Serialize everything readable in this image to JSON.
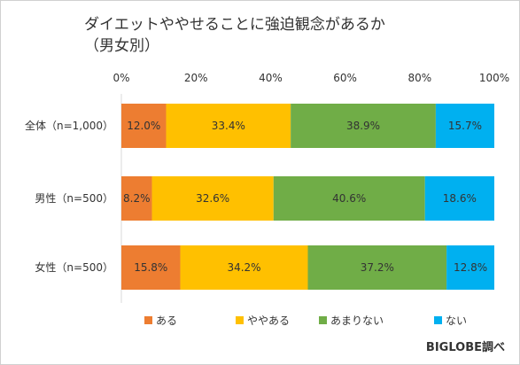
{
  "chart_data": {
    "type": "bar",
    "orientation": "horizontal",
    "stacked": "percent",
    "title_lines": [
      "ダイエットややせることに強迫観念があるか",
      "（男女別）"
    ],
    "categories": [
      "全体（n=1,000）",
      "男性（n=500）",
      "女性（n=500）"
    ],
    "series": [
      {
        "name": "ある",
        "values": [
          12.0,
          8.2,
          15.8
        ],
        "color": "#ed7d31"
      },
      {
        "name": "ややある",
        "values": [
          33.4,
          32.6,
          34.2
        ],
        "color": "#ffc000"
      },
      {
        "name": "あまりない",
        "values": [
          38.9,
          40.6,
          37.2
        ],
        "color": "#70ad47"
      },
      {
        "name": "ない",
        "values": [
          15.7,
          18.6,
          12.8
        ],
        "color": "#00b0f0"
      }
    ],
    "xaxis": {
      "ticks": [
        "0%",
        "20%",
        "40%",
        "60%",
        "80%",
        "100%"
      ],
      "range": [
        0,
        100
      ],
      "position": "top"
    },
    "grid": false,
    "legend": "bottom"
  },
  "source": "BIGLOBE調べ"
}
